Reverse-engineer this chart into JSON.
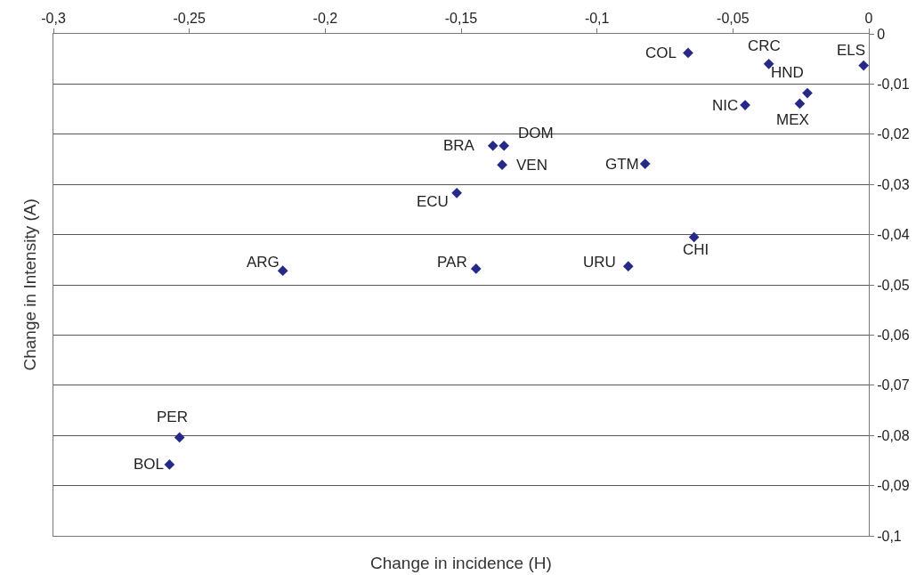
{
  "chart_data": {
    "type": "scatter",
    "xlabel": "Change in incidence (H)",
    "annotations": [
      {
        "text": "COL",
        "x": -0.0665,
        "y": -0.0038
      },
      {
        "text": "CRC",
        "x": -0.0368,
        "y": -0.006
      },
      {
        "text": "ELS",
        "x": -0.0019,
        "y": -0.0063
      },
      {
        "text": "HND",
        "x": -0.0226,
        "y": -0.0118
      },
      {
        "text": "NIC",
        "x": -0.0455,
        "y": -0.0142
      },
      {
        "text": "MEX",
        "x": -0.0254,
        "y": -0.0139
      },
      {
        "text": "BRA",
        "x": -0.1383,
        "y": -0.0223
      },
      {
        "text": "DOM",
        "x": -0.1342,
        "y": -0.0223
      },
      {
        "text": "VEN",
        "x": -0.1349,
        "y": -0.0261
      },
      {
        "text": "GTM",
        "x": -0.0823,
        "y": -0.0259
      },
      {
        "text": "ECU",
        "x": -0.1516,
        "y": -0.0317
      },
      {
        "text": "CHI",
        "x": -0.0643,
        "y": -0.0405
      },
      {
        "text": "ARG",
        "x": -0.2156,
        "y": -0.0472
      },
      {
        "text": "PAR",
        "x": -0.1445,
        "y": -0.0468
      },
      {
        "text": "URU",
        "x": -0.0885,
        "y": -0.0463
      },
      {
        "text": "PER",
        "x": -0.2536,
        "y": -0.0804
      },
      {
        "text": "BOL",
        "x": -0.2573,
        "y": -0.0858
      },
      "Change in Intensity (A)"
    ],
    "x": [
      -0.0665,
      -0.0368,
      -0.0019,
      -0.0226,
      -0.0455,
      -0.0254,
      -0.1383,
      -0.1342,
      -0.1349,
      -0.0823,
      -0.1516,
      -0.0643,
      -0.2156,
      -0.1445,
      -0.0885,
      -0.2536,
      -0.2573
    ],
    "values": [
      -0.0038,
      -0.006,
      -0.0063,
      -0.0118,
      -0.0142,
      -0.0139,
      -0.0223,
      -0.0223,
      -0.0261,
      -0.0259,
      -0.0317,
      -0.0405,
      -0.0472,
      -0.0468,
      -0.0463,
      -0.0804,
      -0.0858
    ],
    "color": "#262a86",
    "marker": "diamond",
    "grid": "y",
    "xlim": [
      -0.3,
      0
    ],
    "ylim": [
      -0.1,
      0
    ],
    "xticks": [
      {
        "value": -0.3,
        "label": "-0,3"
      },
      {
        "value": -0.25,
        "label": "-0,25"
      },
      {
        "value": -0.2,
        "label": "-0,2"
      },
      {
        "value": -0.15,
        "label": "-0,15"
      },
      {
        "value": -0.1,
        "label": "-0,1"
      },
      {
        "value": -0.05,
        "label": "-0,05"
      },
      {
        "value": 0,
        "label": "0"
      }
    ],
    "yticks": [
      {
        "value": 0,
        "label": "0"
      },
      {
        "value": -0.01,
        "label": "-0,01"
      },
      {
        "value": -0.02,
        "label": "-0,02"
      },
      {
        "value": -0.03,
        "label": "-0,03"
      },
      {
        "value": -0.04,
        "label": "-0,04"
      },
      {
        "value": -0.05,
        "label": "-0,05"
      },
      {
        "value": -0.06,
        "label": "-0,06"
      },
      {
        "value": -0.07,
        "label": "-0,07"
      },
      {
        "value": -0.08,
        "label": "-0,08"
      },
      {
        "value": -0.09,
        "label": "-0,09"
      },
      {
        "value": -0.1,
        "label": "-0,1"
      }
    ]
  }
}
